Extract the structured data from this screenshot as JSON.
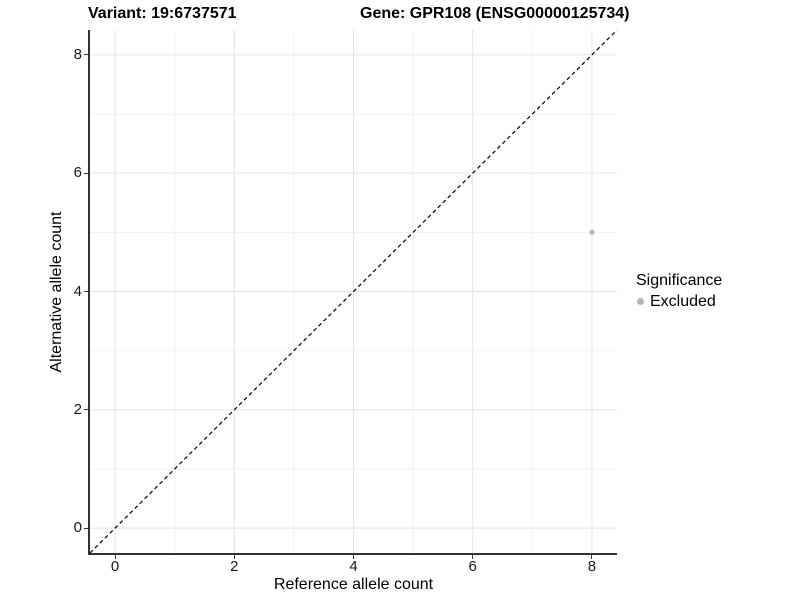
{
  "titles": {
    "variant": "Variant: 19:6737571",
    "gene": "Gene: GPR108 (ENSG00000125734)"
  },
  "chart_data": {
    "type": "scatter",
    "title_left": "Variant: 19:6737571",
    "title_right": "Gene: GPR108 (ENSG00000125734)",
    "xlabel": "Reference allele count",
    "ylabel": "Alternative allele count",
    "x_ticks": [
      0,
      2,
      4,
      6,
      8
    ],
    "y_ticks": [
      0,
      2,
      4,
      6,
      8
    ],
    "x_minor_ticks": [
      1,
      3,
      5,
      7
    ],
    "y_minor_ticks": [
      1,
      3,
      5,
      7
    ],
    "x_range": [
      -0.42,
      8.42
    ],
    "y_range": [
      -0.42,
      8.42
    ],
    "grid": true,
    "points": [
      {
        "x": 8,
        "y": 5,
        "series": "Excluded"
      }
    ],
    "reference_line": {
      "kind": "identity",
      "style": "dashed",
      "color": "#000000"
    },
    "legend": {
      "title": "Significance",
      "position": "right",
      "entries": [
        {
          "label": "Excluded",
          "color": "#b4b4b4"
        }
      ]
    }
  },
  "colors": {
    "point_excluded": "#b4b4b4",
    "grid_major": "#e4e4e4",
    "grid_minor": "#f1f1f1",
    "axis_line": "#333333",
    "tick_text": "#1a1a1a",
    "title_text": "#000000",
    "background": "#ffffff"
  }
}
